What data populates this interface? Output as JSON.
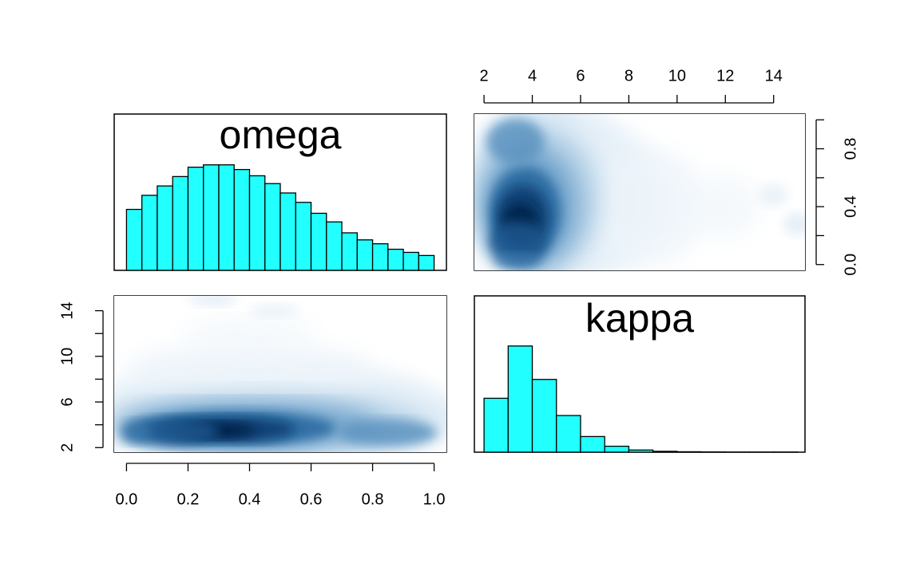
{
  "chart_data": [
    {
      "type": "bar",
      "panel": "top-left",
      "title": "omega",
      "bar_color": "#22FFFF",
      "bin_edges": [
        0.0,
        0.05,
        0.1,
        0.15,
        0.2,
        0.25,
        0.3,
        0.35,
        0.4,
        0.45,
        0.5,
        0.55,
        0.6,
        0.65,
        0.7,
        0.75,
        0.8,
        0.85,
        0.9,
        0.95,
        1.0
      ],
      "values": [
        0.39,
        0.48,
        0.54,
        0.6,
        0.66,
        0.675,
        0.675,
        0.645,
        0.605,
        0.555,
        0.495,
        0.435,
        0.365,
        0.31,
        0.24,
        0.195,
        0.17,
        0.135,
        0.115,
        0.095
      ],
      "xlim": [
        -0.04,
        1.04
      ],
      "ylim": [
        0,
        1
      ],
      "axes_shown": "none"
    },
    {
      "type": "heatmap",
      "panel": "top-right",
      "description_of_axes": "x = kappa, y = omega",
      "colormap": [
        "#FFFFFF",
        "#6BAED6",
        "#08306B",
        "#041C3A"
      ],
      "xlim": [
        1.6,
        15.3
      ],
      "ylim": [
        -0.04,
        1.04
      ],
      "x_ticks": [
        2,
        4,
        6,
        8,
        10,
        12,
        14
      ],
      "x_tick_labels": [
        "2",
        "4",
        "6",
        "8",
        "10",
        "12",
        "14"
      ],
      "x_axis_position": "top",
      "y_ticks": [
        0.0,
        0.2,
        0.4,
        0.6,
        0.8,
        1.0
      ],
      "y_tick_labels": [
        "0.0",
        "",
        "0.4",
        "",
        "0.8",
        ""
      ],
      "y_axis_position": "right",
      "density_mode": {
        "kappa": 3.8,
        "omega": 0.35
      }
    },
    {
      "type": "heatmap",
      "panel": "bottom-left",
      "description_of_axes": "x = omega, y = kappa",
      "colormap": [
        "#FFFFFF",
        "#6BAED6",
        "#08306B",
        "#041C3A"
      ],
      "xlim": [
        -0.04,
        1.04
      ],
      "ylim": [
        1.6,
        15.3
      ],
      "x_ticks": [
        0.0,
        0.2,
        0.4,
        0.6,
        0.8,
        1.0
      ],
      "x_tick_labels": [
        "0.0",
        "0.2",
        "0.4",
        "0.6",
        "0.8",
        "1.0"
      ],
      "x_axis_position": "bottom",
      "y_ticks": [
        2,
        4,
        6,
        8,
        10,
        12,
        14
      ],
      "y_tick_labels": [
        "2",
        "",
        "6",
        "",
        "10",
        "",
        "14"
      ],
      "y_axis_position": "left",
      "density_mode": {
        "omega": 0.35,
        "kappa": 3.8
      }
    },
    {
      "type": "bar",
      "panel": "bottom-right",
      "title": "kappa",
      "bar_color": "#22FFFF",
      "bin_edges": [
        2,
        3,
        4,
        5,
        6,
        7,
        8,
        9,
        10,
        11,
        12,
        13,
        14,
        15
      ],
      "values": [
        0.5,
        0.985,
        0.675,
        0.34,
        0.145,
        0.055,
        0.02,
        0.008,
        0.004,
        0.002,
        0.001,
        0.001,
        0.001
      ],
      "xlim": [
        1.6,
        15.3
      ],
      "ylim": [
        0,
        1.45
      ],
      "axes_shown": "none"
    }
  ]
}
